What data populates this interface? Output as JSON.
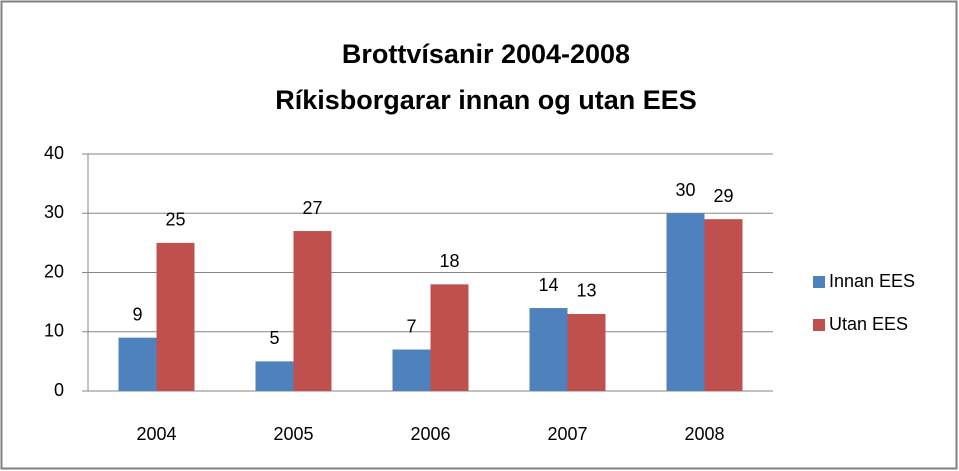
{
  "chart_data": {
    "type": "bar",
    "title": "Brottvísanir 2004-2008",
    "subtitle": "Ríkisborgarar innan og utan EES",
    "categories": [
      "2004",
      "2005",
      "2006",
      "2007",
      "2008"
    ],
    "series": [
      {
        "name": "Innan EES",
        "color": "#4f81bd",
        "values": [
          9,
          5,
          7,
          14,
          30
        ]
      },
      {
        "name": "Utan EES",
        "color": "#c0504d",
        "values": [
          25,
          27,
          18,
          13,
          29
        ]
      }
    ],
    "ylim": [
      0,
      40
    ],
    "yticks": [
      0,
      10,
      20,
      30,
      40
    ],
    "grid": true,
    "legend": "right",
    "data_labels": true
  }
}
